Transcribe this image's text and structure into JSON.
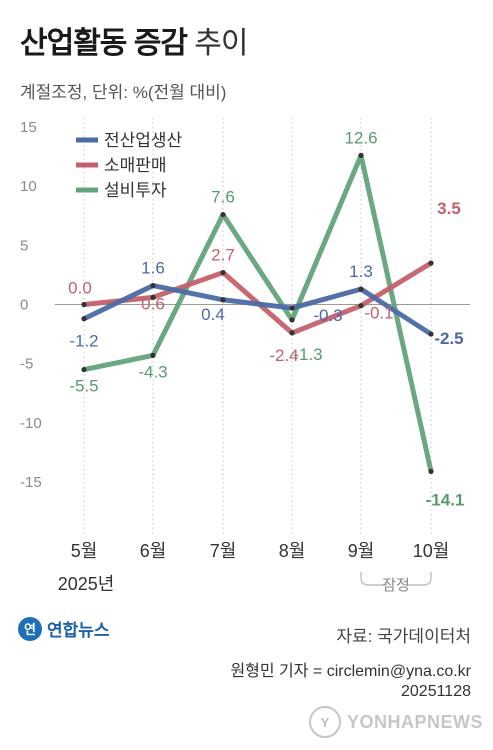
{
  "header": {
    "title_bold": "산업활동 증감",
    "title_normal": "추이",
    "subtitle": "계절조정, 단위: %(전월 대비)"
  },
  "chart_data": {
    "type": "line",
    "categories": [
      "5월",
      "6월",
      "7월",
      "8월",
      "9월",
      "10월"
    ],
    "year_label": "2025년",
    "bracket_label": "잠정",
    "ylim": [
      -15,
      15
    ],
    "yticks": [
      15,
      10,
      5,
      0,
      -5,
      -10,
      -15
    ],
    "series": [
      {
        "name": "전산업생산",
        "color": "#4a6aa5",
        "values": [
          -1.2,
          1.6,
          0.4,
          -0.3,
          1.3,
          -2.5
        ],
        "labels": [
          "-1.2",
          "1.6",
          "0.4",
          "-0.3",
          "1.3",
          "-2.5"
        ]
      },
      {
        "name": "소매판매",
        "color": "#c4606b",
        "values": [
          0.0,
          0.6,
          2.7,
          -2.4,
          -0.1,
          3.5
        ],
        "labels": [
          "0.0",
          "0.6",
          "2.7",
          "-2.4",
          "-0.1",
          "3.5"
        ]
      },
      {
        "name": "설비투자",
        "color": "#62a37a",
        "values": [
          -5.5,
          -4.3,
          7.6,
          -1.3,
          12.6,
          -14.1
        ],
        "labels": [
          "-5.5",
          "-4.3",
          "7.6",
          "-1.3",
          "12.6",
          "-14.1"
        ]
      }
    ],
    "legend_position": "top-left",
    "grid": false
  },
  "footer": {
    "logo_text": "연합뉴스",
    "source": "자료: 국가데이터처",
    "credit_line1": "원형민 기자 = circlemin@yna.co.kr",
    "credit_line2": "20251128",
    "watermark": "YONHAPNEWS"
  }
}
